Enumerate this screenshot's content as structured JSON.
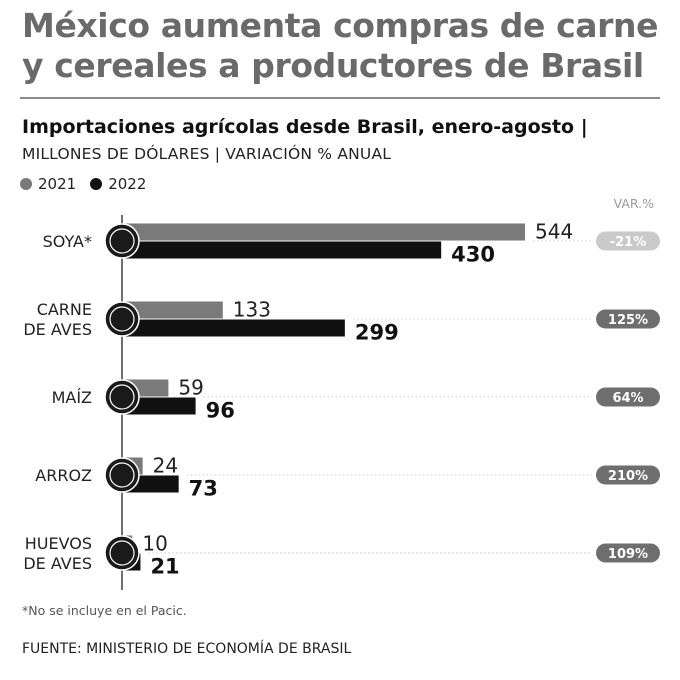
{
  "headline": "México aumenta compras de carne y cereales a productores de Brasil",
  "subtitle": "Importaciones agrícolas desde Brasil, enero-agosto |",
  "units": "MILLONES DE DÓLARES | VARIACIÓN % ANUAL",
  "legend": [
    {
      "label": "2021",
      "color": "#7a7a7a"
    },
    {
      "label": "2022",
      "color": "#111111"
    }
  ],
  "var_header": "VAR.%",
  "footnote": "*No se incluye en el Pacic.",
  "source": "FUENTE: MINISTERIO DE ECONOMÍA DE BRASIL",
  "chart_data": {
    "type": "bar",
    "orientation": "horizontal",
    "title": "Importaciones agrícolas desde Brasil, enero-agosto",
    "units": "Millones de dólares",
    "categories": [
      {
        "lines": [
          "SOYA*"
        ],
        "icon": "soy-icon"
      },
      {
        "lines": [
          "CARNE",
          "DE AVES"
        ],
        "icon": "chicken-icon"
      },
      {
        "lines": [
          "MAÍZ"
        ],
        "icon": "corn-icon"
      },
      {
        "lines": [
          "ARROZ"
        ],
        "icon": "rice-icon"
      },
      {
        "lines": [
          "HUEVOS",
          "DE AVES"
        ],
        "icon": "egg-icon"
      }
    ],
    "series": [
      {
        "name": "2021",
        "color": "#7a7a7a",
        "values": [
          544,
          133,
          59,
          24,
          10
        ]
      },
      {
        "name": "2022",
        "color": "#111111",
        "values": [
          430,
          299,
          96,
          73,
          21
        ]
      }
    ],
    "variation": [
      "-21%",
      "125%",
      "64%",
      "210%",
      "109%"
    ],
    "variation_colors": [
      "#c9c9c9",
      "#6e6e6e",
      "#6e6e6e",
      "#6e6e6e",
      "#6e6e6e"
    ],
    "xlim": [
      0,
      544
    ]
  }
}
